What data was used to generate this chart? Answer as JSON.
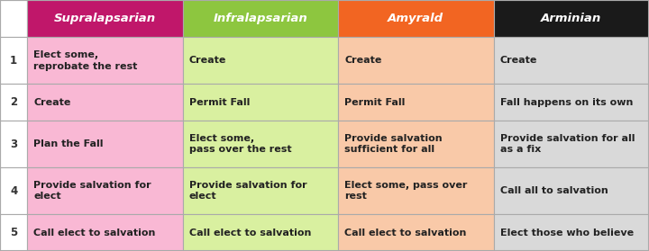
{
  "headers": [
    "Supralapsarian",
    "Infralapsarian",
    "Amyrald",
    "Arminian"
  ],
  "header_colors": [
    "#c0176a",
    "#8dc63f",
    "#f26522",
    "#1a1a1a"
  ],
  "header_text_color": "#ffffff",
  "col_colors": [
    "#f9b8d4",
    "#d9f0a0",
    "#f9c9a8",
    "#d9d9d9"
  ],
  "row_label_bg": "#ffffff",
  "row_label_text": "#333333",
  "row_labels": [
    "1",
    "2",
    "3",
    "4",
    "5"
  ],
  "cells": [
    [
      "Elect some,\nreprobate the rest",
      "Create",
      "Create",
      "Create"
    ],
    [
      "Create",
      "Permit Fall",
      "Permit Fall",
      "Fall happens on its own"
    ],
    [
      "Plan the Fall",
      "Elect some,\npass over the rest",
      "Provide salvation\nsufficient for all",
      "Provide salvation for all\nas a fix"
    ],
    [
      "Provide salvation for\nelect",
      "Provide salvation for\nelect",
      "Elect some, pass over\nrest",
      "Call all to salvation"
    ],
    [
      "Call elect to salvation",
      "Call elect to salvation",
      "Call elect to salvation",
      "Elect those who believe"
    ]
  ],
  "border_color": "#aaaaaa",
  "figsize": [
    7.2,
    2.79
  ],
  "dpi": 100,
  "header_fontsize": 9.5,
  "cell_fontsize": 8.0,
  "row_label_fontsize": 8.5
}
